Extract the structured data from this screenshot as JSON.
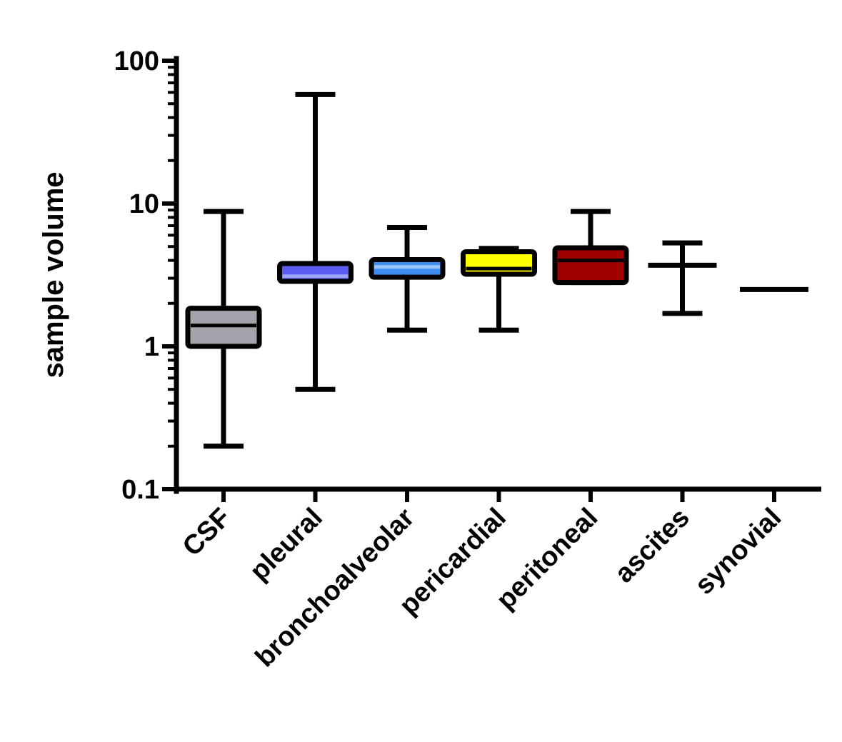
{
  "chart_data": {
    "type": "box",
    "title": "",
    "xlabel": "",
    "ylabel": "sample volume",
    "yscale": "log",
    "ylim": [
      0.1,
      100
    ],
    "yticks": [
      {
        "value": 0.1,
        "label": "0.1"
      },
      {
        "value": 1,
        "label": "1"
      },
      {
        "value": 10,
        "label": "10"
      },
      {
        "value": 100,
        "label": "100"
      }
    ],
    "grid": false,
    "legend": "none",
    "categories": [
      "CSF",
      "pleural",
      "bronchoalveolar",
      "pericardial",
      "peritoneal",
      "ascites",
      "synovial"
    ],
    "series": [
      {
        "category": "CSF",
        "min": 0.2,
        "q1": 1.0,
        "median": 1.4,
        "q3": 1.85,
        "max": 8.8,
        "box": true,
        "fill": "#a3a3ab",
        "median_color": "#000000"
      },
      {
        "category": "pleural",
        "min": 0.5,
        "q1": 2.85,
        "median": 3.1,
        "q3": 3.8,
        "max": 58,
        "box": true,
        "fill": "#5b5bf2",
        "median_color": "#9ea6f5"
      },
      {
        "category": "bronchoalveolar",
        "min": 1.3,
        "q1": 3.05,
        "median": 3.6,
        "q3": 4.05,
        "max": 6.8,
        "box": true,
        "fill": "#3c8ef2",
        "median_color": "#9ec6f7"
      },
      {
        "category": "pericardial",
        "min": 1.3,
        "q1": 3.2,
        "median": 3.5,
        "q3": 4.6,
        "max": 4.85,
        "box": true,
        "fill": "#ffff00",
        "median_color": "#000000"
      },
      {
        "category": "peritoneal",
        "min": 2.8,
        "q1": 2.8,
        "median": 4.0,
        "q3": 4.9,
        "max": 8.8,
        "box": true,
        "fill": "#a00000",
        "median_color": "#000000"
      },
      {
        "category": "ascites",
        "min": 1.7,
        "median": 3.7,
        "max": 5.3,
        "box": false
      },
      {
        "category": "synovial",
        "median": 2.5,
        "box": false
      }
    ]
  }
}
